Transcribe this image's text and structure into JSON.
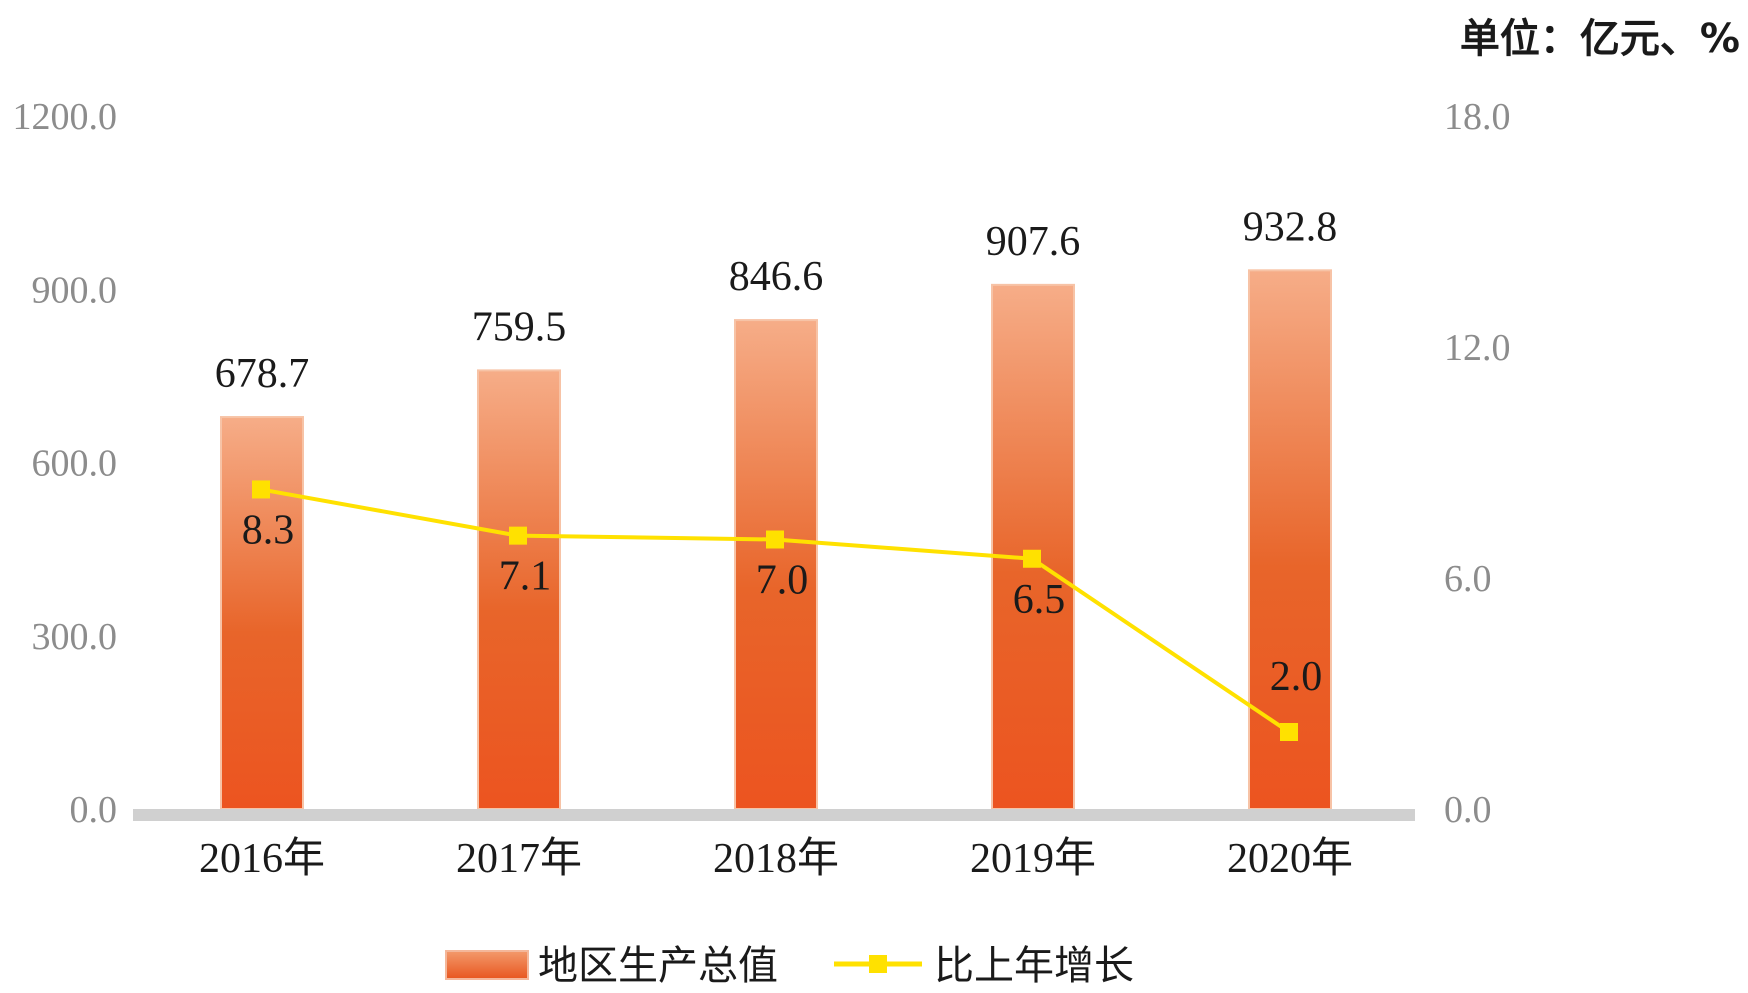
{
  "chart_data": {
    "type": "bar",
    "unit_label": "单位：亿元、%",
    "categories": [
      "2016年",
      "2017年",
      "2018年",
      "2019年",
      "2020年"
    ],
    "series": [
      {
        "name": "地区生产总值",
        "type": "bar",
        "axis": "left",
        "values": [
          678.7,
          759.5,
          846.6,
          907.6,
          932.8
        ],
        "labels": [
          "678.7",
          "759.5",
          "846.6",
          "907.6",
          "932.8"
        ],
        "color": "#e8652a"
      },
      {
        "name": "比上年增长",
        "type": "line",
        "axis": "right",
        "values": [
          8.3,
          7.1,
          7.0,
          6.5,
          2.0
        ],
        "labels": [
          "8.3",
          "7.1",
          "7.0",
          "6.5",
          "2.0"
        ],
        "color": "#ffe100"
      }
    ],
    "y_left": {
      "range": [
        0,
        1200
      ],
      "ticks": [
        0,
        300,
        600,
        900,
        1200
      ],
      "tick_labels": [
        "0.0",
        "300.0",
        "600.0",
        "900.0",
        "1200.0"
      ]
    },
    "y_right": {
      "range": [
        0,
        18
      ],
      "ticks": [
        0,
        6,
        12,
        18
      ],
      "tick_labels": [
        "0.0",
        "6.0",
        "12.0",
        "18.0"
      ]
    },
    "grid": false,
    "legend_position": "bottom-center"
  }
}
